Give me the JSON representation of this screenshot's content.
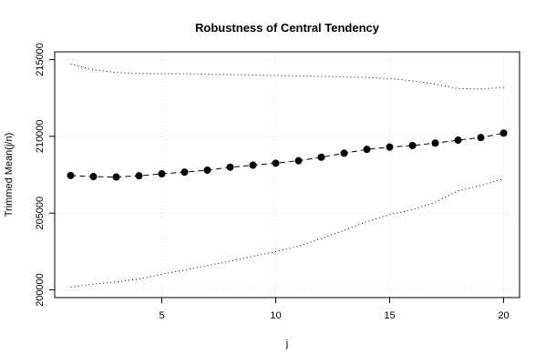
{
  "chart_data": {
    "type": "line",
    "title": "Robustness of Central Tendency",
    "xlabel": "j",
    "ylabel": "Trimmed Mean(j/n)",
    "xlim": [
      0.3,
      20.7
    ],
    "ylim": [
      199500,
      215500
    ],
    "x_ticks": [
      5,
      10,
      15,
      20
    ],
    "y_ticks": [
      200000,
      205000,
      210000,
      215000
    ],
    "grid": true,
    "x": [
      1,
      2,
      3,
      4,
      5,
      6,
      7,
      8,
      9,
      10,
      11,
      12,
      13,
      14,
      15,
      16,
      17,
      18,
      19,
      20
    ],
    "series": [
      {
        "role": "mean",
        "style": "dashed-with-points",
        "values": [
          207450,
          207380,
          207350,
          207430,
          207560,
          207670,
          207800,
          207990,
          208120,
          208250,
          208410,
          208640,
          208900,
          209150,
          209300,
          209400,
          209560,
          209750,
          209920,
          210210
        ]
      },
      {
        "role": "upper-bound",
        "style": "dotted",
        "values": [
          214700,
          214350,
          214150,
          214100,
          214080,
          214070,
          214050,
          214020,
          213990,
          213960,
          213930,
          213900,
          213870,
          213830,
          213760,
          213610,
          213400,
          213110,
          213080,
          213180
        ]
      },
      {
        "role": "lower-bound",
        "style": "dotted",
        "values": [
          200180,
          200380,
          200520,
          200710,
          201020,
          201300,
          201590,
          201870,
          202190,
          202490,
          202850,
          203340,
          203880,
          204450,
          204900,
          205230,
          205700,
          206450,
          206800,
          207230
        ]
      }
    ]
  }
}
